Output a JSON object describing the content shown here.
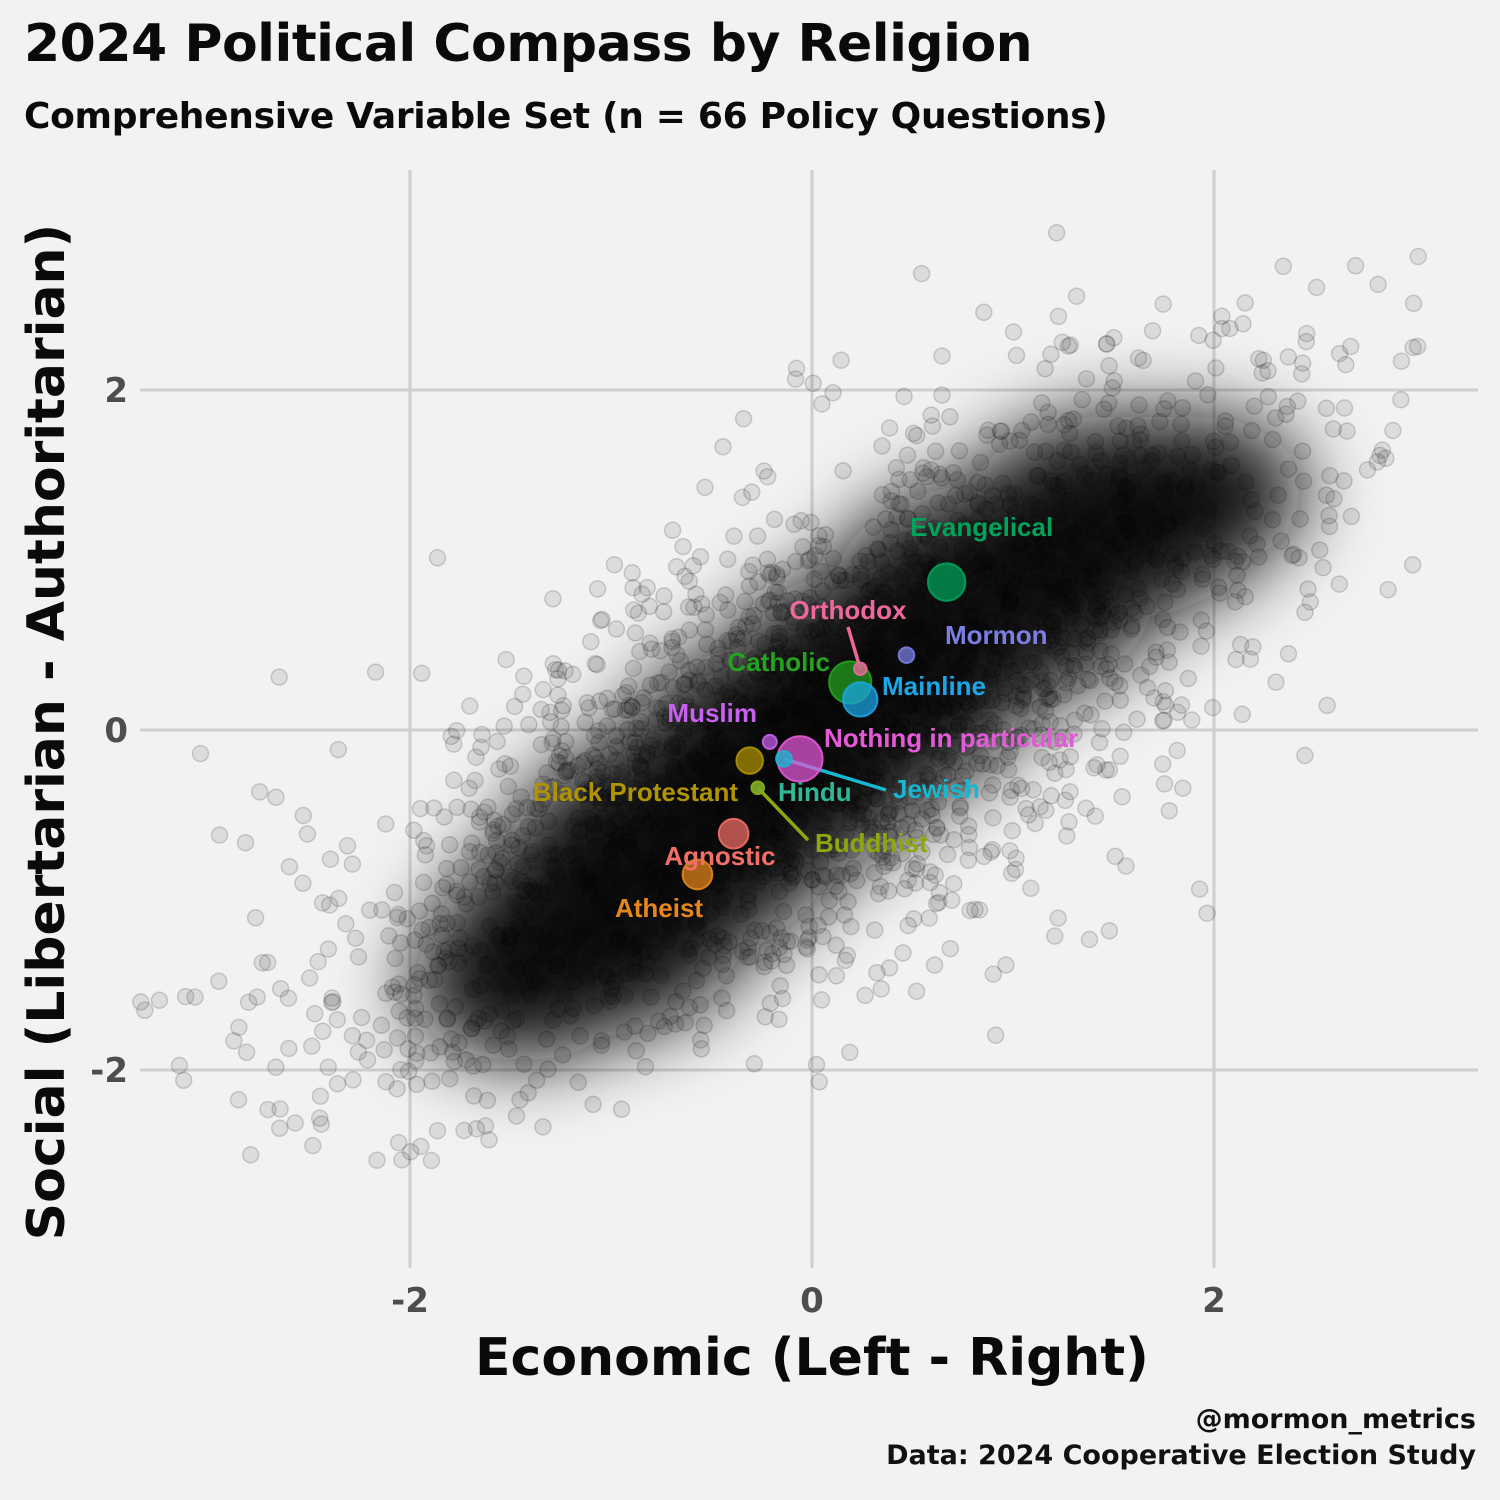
{
  "title": "2024 Political Compass by Religion",
  "subtitle": "Comprehensive Variable Set (n = 66 Policy Questions)",
  "caption": {
    "handle": "@mormon_metrics",
    "source": "Data: 2024 Cooperative Election Study"
  },
  "chart_data": {
    "type": "scatter",
    "xlabel": "Economic (Left - Right)",
    "ylabel": "Social (Libertarian - Authoritarian)",
    "xlim": [
      -3.5,
      3.3
    ],
    "ylim": [
      -3.2,
      3.3
    ],
    "x_ticks": [
      "-2",
      "0",
      "2"
    ],
    "y_ticks": [
      "-2",
      "0",
      "2"
    ],
    "x_tick_values": [
      -2,
      0,
      2
    ],
    "y_tick_values": [
      -2,
      0,
      2
    ],
    "grid": true,
    "legend": "none",
    "background_cloud": "individual respondents (semi-transparent black points), correlation approx. positive",
    "series": [
      {
        "label": "Evangelical",
        "x": 0.67,
        "y": 0.87,
        "color": "#00a35a",
        "size": 24
      },
      {
        "label": "Orthodox",
        "x": 0.24,
        "y": 0.36,
        "color": "#f0679e",
        "size": 8
      },
      {
        "label": "Mormon",
        "x": 0.47,
        "y": 0.44,
        "color": "#7b7ee3",
        "size": 10
      },
      {
        "label": "Catholic",
        "x": 0.19,
        "y": 0.28,
        "color": "#23a320",
        "size": 27
      },
      {
        "label": "Mainline",
        "x": 0.24,
        "y": 0.18,
        "color": "#1ba6e8",
        "size": 22
      },
      {
        "label": "Muslim",
        "x": -0.21,
        "y": -0.07,
        "color": "#c860f0",
        "size": 9
      },
      {
        "label": "Nothing in particular",
        "x": -0.06,
        "y": -0.17,
        "color": "#e55ad8",
        "size": 29
      },
      {
        "label": "Jewish",
        "x": -0.14,
        "y": -0.17,
        "color": "#15b8d0",
        "size": 10
      },
      {
        "label": "Black Protestant",
        "x": -0.31,
        "y": -0.18,
        "color": "#b09300",
        "size": 17
      },
      {
        "label": "Hindu",
        "x": -0.27,
        "y": -0.34,
        "color": "#2fb897",
        "size": 8
      },
      {
        "label": "Buddhist",
        "x": -0.27,
        "y": -0.34,
        "color": "#8fa70d",
        "size": 8
      },
      {
        "label": "Agnostic",
        "x": -0.39,
        "y": -0.61,
        "color": "#f26f67",
        "size": 19
      },
      {
        "label": "Atheist",
        "x": -0.57,
        "y": -0.85,
        "color": "#e6871c",
        "size": 19
      }
    ]
  }
}
